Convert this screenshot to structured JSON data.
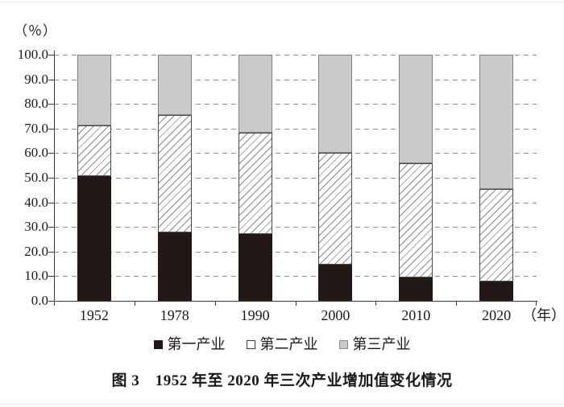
{
  "figure": {
    "percent_label": "（％）",
    "year_suffix": "（年）",
    "caption": "图 3　1952 年至 2020 年三次产业增加值变化情况"
  },
  "chart_data": {
    "type": "bar",
    "stacked": true,
    "title": "图 3 1952 年至 2020 年三次产业增加值变化情况",
    "xlabel": "年",
    "ylabel": "%",
    "ylim": [
      0,
      100
    ],
    "ytick_step": 10,
    "yticks": [
      "0.0",
      "10.0",
      "20.0",
      "30.0",
      "40.0",
      "50.0",
      "60.0",
      "70.0",
      "80.0",
      "90.0",
      "100.0"
    ],
    "grid": "horizontal-dashed",
    "legend_position": "bottom",
    "categories": [
      "1952",
      "1978",
      "1990",
      "2000",
      "2010",
      "2020"
    ],
    "series": [
      {
        "name": "第一产业",
        "style": "solid-black",
        "color": "#231815",
        "values": [
          50.5,
          27.7,
          27.1,
          14.7,
          9.6,
          7.7
        ]
      },
      {
        "name": "第二产业",
        "style": "diagonal-hatch",
        "color": "#ffffff",
        "hatch_line_color": "#8a8a8a",
        "values": [
          20.9,
          47.7,
          41.3,
          45.5,
          46.2,
          37.8
        ]
      },
      {
        "name": "第三产业",
        "style": "solid-gray",
        "color": "#c9caca",
        "values": [
          28.6,
          24.6,
          31.6,
          39.8,
          44.2,
          54.5
        ]
      }
    ],
    "colors": {
      "axis": "#3a3a3a",
      "gridline": "#8f8f8f",
      "text": "#1a1a1a"
    }
  }
}
